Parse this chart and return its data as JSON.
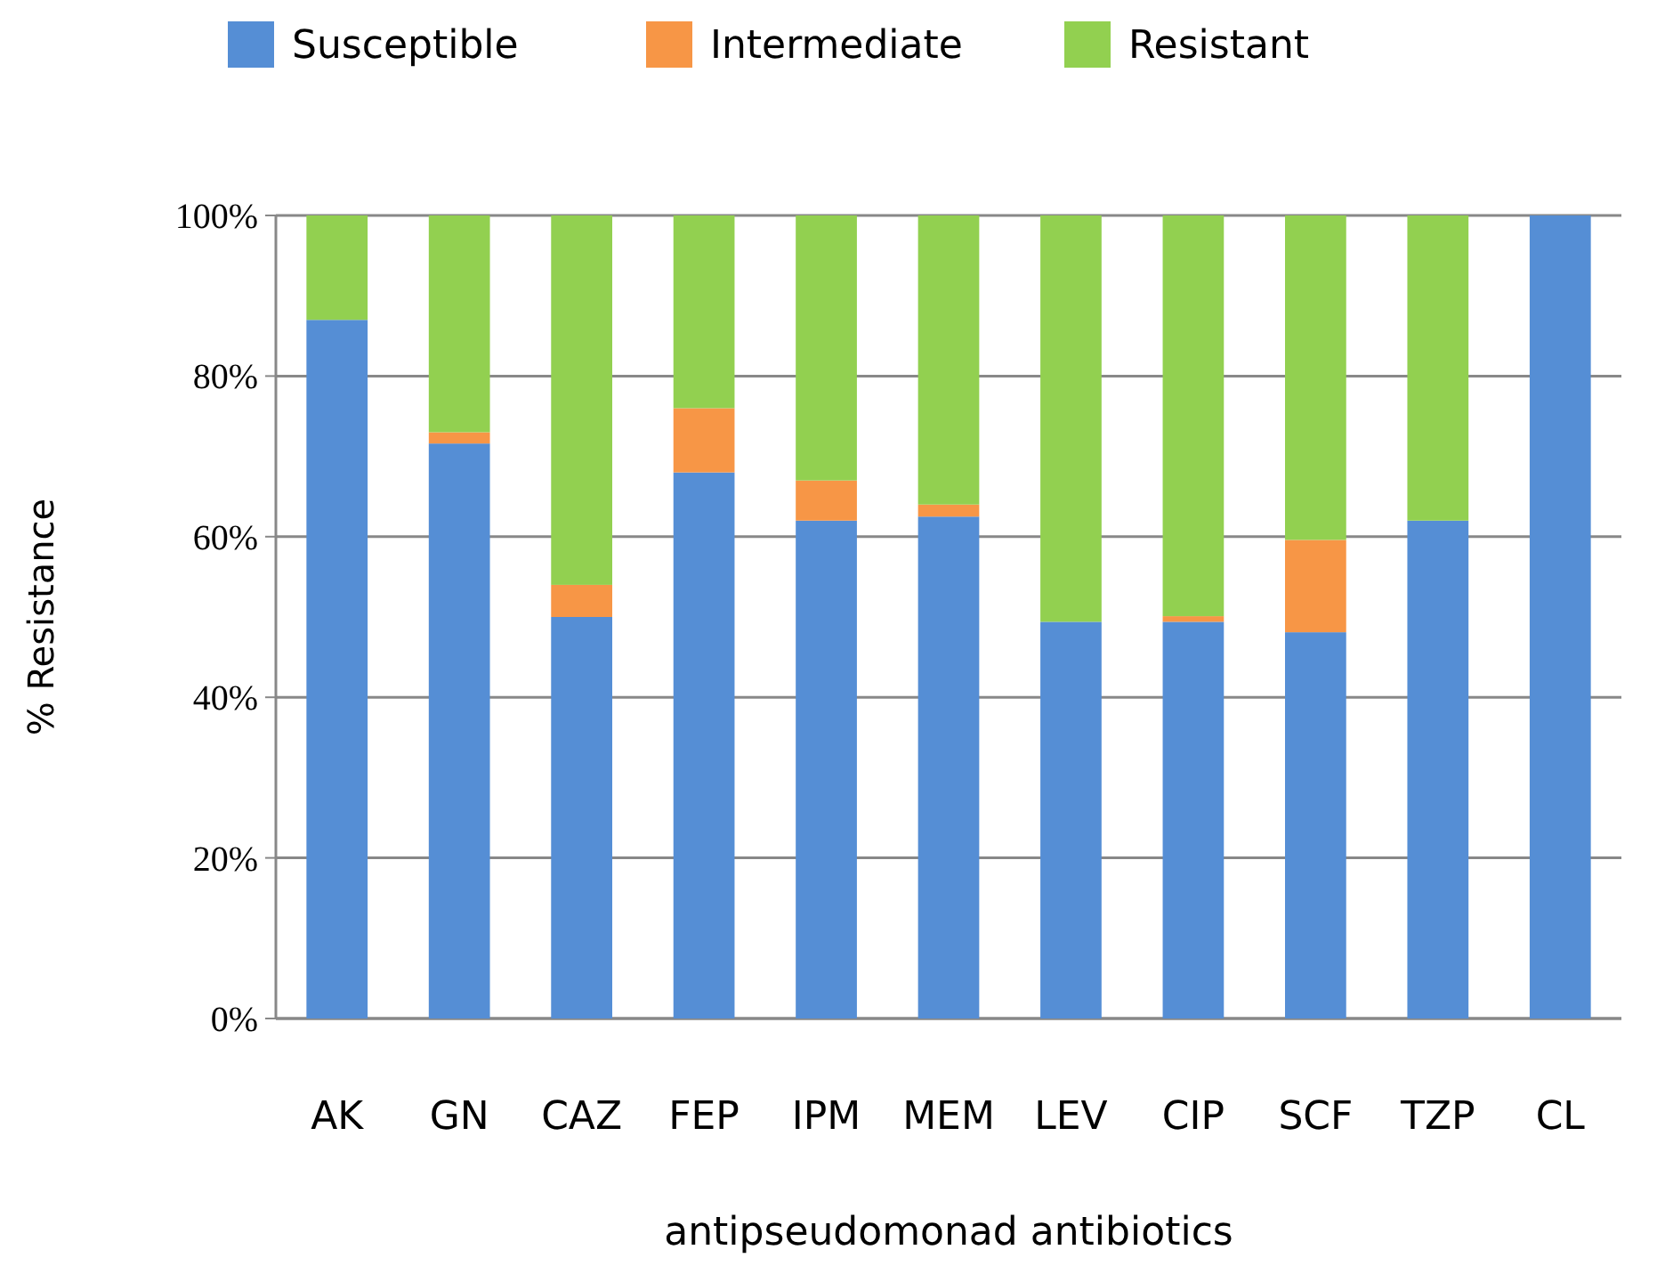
{
  "chart_data": {
    "type": "bar",
    "stacked": true,
    "xlabel": "antipseudomonad antibiotics",
    "ylabel": "% Resistance",
    "categories": [
      "AK",
      "GN",
      "CAZ",
      "FEP",
      "IPM",
      "MEM",
      "LEV",
      "CIP",
      "SCF",
      "TZP",
      "CL"
    ],
    "series": [
      {
        "name": "Susceptible",
        "color": "#558ed5",
        "values": [
          87,
          71.6,
          50,
          68,
          62,
          62.5,
          49.4,
          49.4,
          48.1,
          62,
          100
        ]
      },
      {
        "name": "Intermediate",
        "color": "#f79646",
        "values": [
          0,
          1.4,
          4,
          8,
          5,
          1.5,
          0,
          0.7,
          11.5,
          0,
          0
        ]
      },
      {
        "name": "Resistant",
        "color": "#92d050",
        "values": [
          13,
          27,
          46,
          24,
          33,
          36,
          50.6,
          49.9,
          40.4,
          38,
          0
        ]
      }
    ],
    "ylim": [
      0,
      100
    ],
    "yticks": [
      {
        "value": 0,
        "label": "0%"
      },
      {
        "value": 20,
        "label": "20%"
      },
      {
        "value": 40,
        "label": "40%"
      },
      {
        "value": 60,
        "label": "60%"
      },
      {
        "value": 80,
        "label": "80%"
      },
      {
        "value": 100,
        "label": "100%"
      }
    ],
    "grid": "y",
    "legend": "top"
  }
}
